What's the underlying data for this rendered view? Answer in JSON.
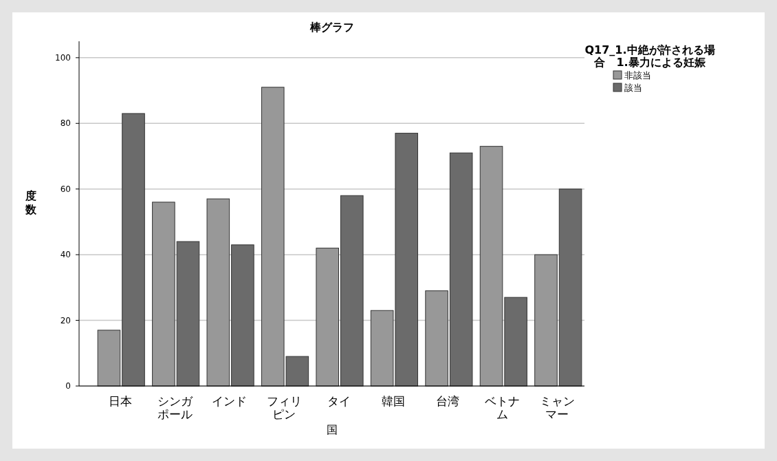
{
  "chart_data": {
    "type": "bar",
    "title": "棒グラフ",
    "xlabel": "国",
    "ylabel": "度数",
    "legend_title": "Q17_1.中絶が許される場合　1.暴力による妊娠",
    "categories": [
      "日本",
      "シンガポール",
      "インド",
      "フィリピン",
      "タイ",
      "韓国",
      "台湾",
      "ベトナム",
      "ミャンマー"
    ],
    "series": [
      {
        "name": "非該当",
        "color": "#989898",
        "values": [
          17,
          56,
          57,
          91,
          42,
          23,
          29,
          73,
          40
        ]
      },
      {
        "name": "該当",
        "color": "#6b6b6b",
        "values": [
          83,
          44,
          43,
          9,
          58,
          77,
          71,
          27,
          60
        ]
      }
    ],
    "ylim": [
      0,
      105
    ],
    "yticks": [
      0,
      20,
      40,
      60,
      80,
      100
    ],
    "grid": "y",
    "legend": "top right"
  }
}
